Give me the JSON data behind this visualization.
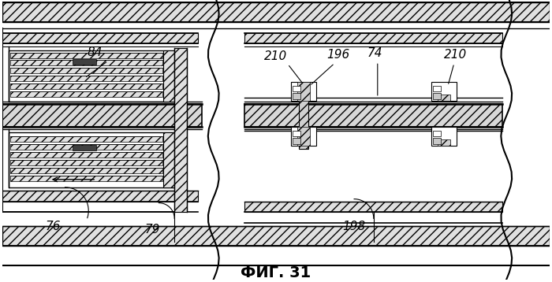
{
  "title": "ФИГ. 31",
  "title_fontsize": 14,
  "title_fontweight": "bold",
  "bg_color": "#ffffff",
  "fig_width": 7.0,
  "fig_height": 3.58
}
